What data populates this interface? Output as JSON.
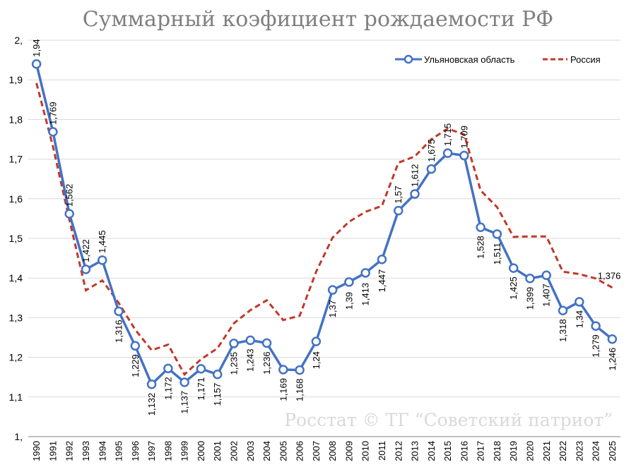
{
  "chart_data": {
    "type": "line",
    "title": "Суммарный коэфициент рождаемости РФ",
    "watermark": "Росстат © ТГ “Советский патриот”",
    "xlabel": "",
    "ylabel": "",
    "x": [
      "1990",
      "1991",
      "1992",
      "1993",
      "1994",
      "1995",
      "1996",
      "1997",
      "1998",
      "1999",
      "2000",
      "2001",
      "2002",
      "2003",
      "2004",
      "2005",
      "2006",
      "2007",
      "2008",
      "2009",
      "2010",
      "2011",
      "2012",
      "2013",
      "2014",
      "2015",
      "2016",
      "2017",
      "2018",
      "2019",
      "2020",
      "2021",
      "2022",
      "2023",
      "2024",
      "2025"
    ],
    "ylim": [
      1.0,
      2.0
    ],
    "yticks": [
      1.0,
      1.1,
      1.2,
      1.3,
      1.4,
      1.5,
      1.6,
      1.7,
      1.8,
      1.9,
      2.0
    ],
    "ytick_labels": [
      "1,",
      "1,1",
      "1,2",
      "1,3",
      "1,4",
      "1,5",
      "1,6",
      "1,7",
      "1,8",
      "1,9",
      "2,"
    ],
    "grid": true,
    "legend_position": "top-right",
    "series": [
      {
        "name": "Ульяновская область",
        "color": "#4472c4",
        "style": "solid-with-markers",
        "values": [
          1.94,
          1.769,
          1.562,
          1.422,
          1.445,
          1.316,
          1.229,
          1.132,
          1.172,
          1.137,
          1.171,
          1.157,
          1.235,
          1.243,
          1.236,
          1.169,
          1.168,
          1.24,
          1.37,
          1.39,
          1.413,
          1.447,
          1.57,
          1.612,
          1.675,
          1.715,
          1.709,
          1.528,
          1.511,
          1.425,
          1.399,
          1.407,
          1.318,
          1.34,
          1.279,
          1.246
        ],
        "labels": [
          "1,94",
          "1,769",
          "1,562",
          "1,422",
          "1,445",
          "1,316",
          "1,229",
          "1,132",
          "1,172",
          "1,137",
          "1,171",
          "1,157",
          "1,235",
          "1,243",
          "1,236",
          "1,169",
          "1,168",
          "1,24",
          "1,37",
          "1,39",
          "1,413",
          "1,447",
          "1,57",
          "1,612",
          "1,675",
          "1,715",
          "1,709",
          "1,528",
          "1,511",
          "1,425",
          "1,399",
          "1,407",
          "1,318",
          "1,34",
          "1,279",
          "1,246"
        ]
      },
      {
        "name": "Россия",
        "color": "#c0392b",
        "style": "dashed",
        "values": [
          1.892,
          1.732,
          1.547,
          1.369,
          1.394,
          1.337,
          1.27,
          1.218,
          1.232,
          1.157,
          1.195,
          1.223,
          1.286,
          1.319,
          1.344,
          1.294,
          1.305,
          1.416,
          1.502,
          1.542,
          1.567,
          1.582,
          1.691,
          1.707,
          1.75,
          1.777,
          1.762,
          1.621,
          1.579,
          1.504,
          1.505,
          1.505,
          1.416,
          1.41,
          1.399,
          1.376
        ],
        "labels": [
          "1,376"
        ]
      }
    ]
  }
}
